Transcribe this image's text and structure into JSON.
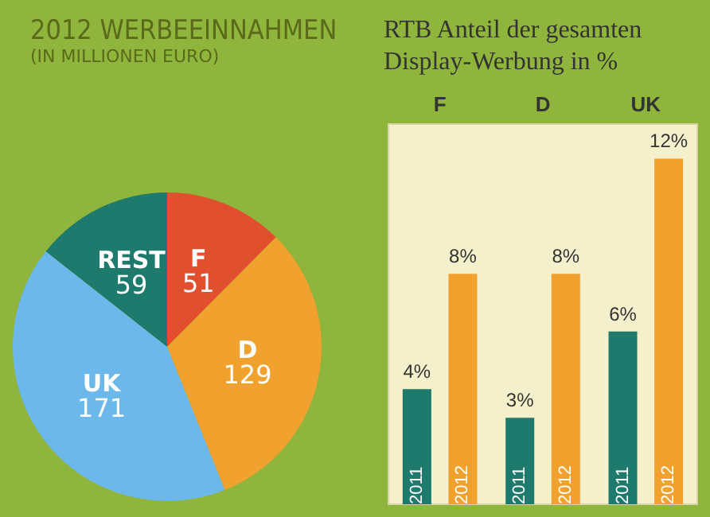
{
  "chart_data": [
    {
      "type": "pie",
      "title": "2012 WERBEEINNAHMEN",
      "subtitle": "(IN MILLIONEN EURO)",
      "categories": [
        "F",
        "D",
        "UK",
        "REST"
      ],
      "values": [
        51,
        129,
        171,
        59
      ],
      "colors": [
        "#e0502e",
        "#f0a12e",
        "#6db8ea",
        "#1d7a6c"
      ],
      "data_labels": true,
      "legend": false
    },
    {
      "type": "bar",
      "title": "RTB Anteil der gesamten Display-Werbung in %",
      "categories": [
        "F",
        "D",
        "UK"
      ],
      "series": [
        {
          "name": "2011",
          "color": "#1d7a6c",
          "values": [
            4,
            3,
            6
          ],
          "value_labels": [
            "4%",
            "3%",
            "6%"
          ]
        },
        {
          "name": "2012",
          "color": "#f0a12e",
          "values": [
            8,
            8,
            12
          ],
          "value_labels": [
            "8%",
            "8%",
            "12%"
          ]
        }
      ],
      "legend": false,
      "grid": false
    }
  ]
}
